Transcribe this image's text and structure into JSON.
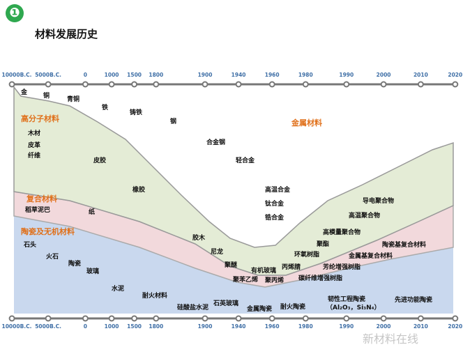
{
  "header": {
    "badge": "❶",
    "title": "材料发展历史"
  },
  "timeline": [
    "10000B.C.",
    "5000B.C.",
    "0",
    "1000",
    "1500",
    "1800",
    "1900",
    "1940",
    "1960",
    "1980",
    "1990",
    "2000",
    "2010",
    "2020"
  ],
  "categories": {
    "polymer": "高分子材料",
    "metal": "金属材料",
    "composite": "复合材料",
    "ceramic": "陶瓷及无机材料"
  },
  "labels": [
    "金",
    "铜",
    "青铜",
    "铁",
    "铸铁",
    "钢",
    "合金钢",
    "轻合金",
    "高温合金",
    "钛合金",
    "锆合金",
    "导电聚合物",
    "高温聚合物",
    "高模量聚合物",
    "聚酯",
    "环氧树脂",
    "丙烯腈",
    "木材",
    "皮革",
    "纤维",
    "皮胶",
    "橡胶",
    "胶木",
    "尼龙",
    "聚醚",
    "有机玻璃",
    "聚苯乙烯",
    "聚丙烯",
    "稻草泥巴",
    "纸",
    "金属基复合材料",
    "陶瓷基复合材料",
    "芳纶增强树脂",
    "碳纤维增强树脂",
    "石头",
    "火石",
    "陶瓷",
    "玻璃",
    "水泥",
    "耐火材料",
    "硅酸盐水泥",
    "石英玻璃",
    "金属陶瓷",
    "耐火陶瓷",
    "韧性工程陶瓷",
    "（Al₂O₃，Si₃N₄）",
    "先进功能陶瓷"
  ],
  "watermark": "新材料在线",
  "colors": {
    "polymer": "#e4ecd6",
    "composite": "#f2d9dc",
    "ceramic": "#c9d8ee",
    "badge": "#2fa84f",
    "accent": "#e0701a"
  }
}
